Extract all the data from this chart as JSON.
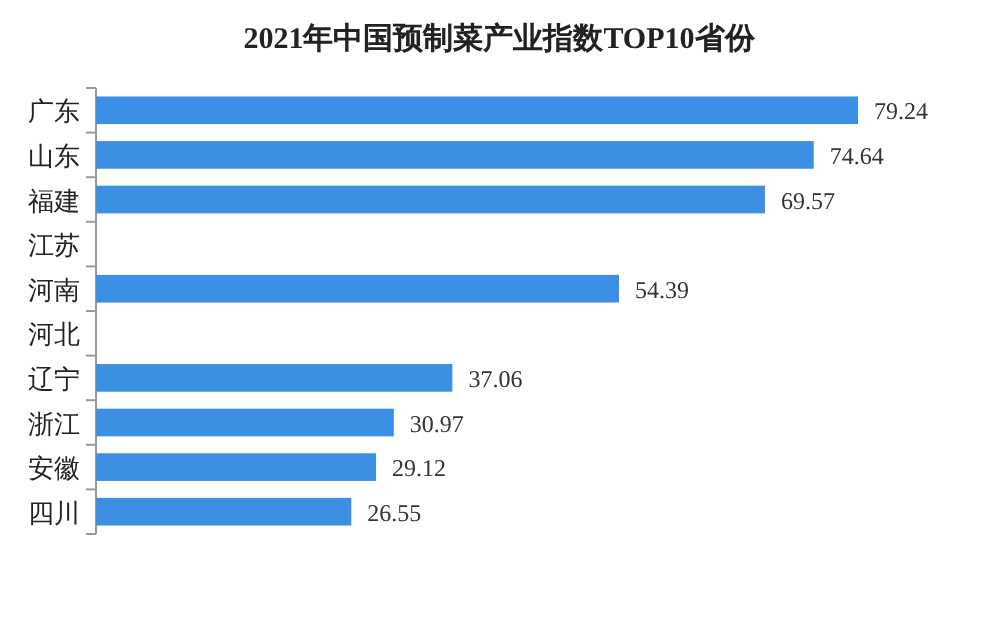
{
  "chart_data": {
    "type": "bar",
    "orientation": "horizontal",
    "title": "2021年中国预制菜产业指数TOP10省份",
    "categories": [
      "广东",
      "山东",
      "福建",
      "江苏",
      "河南",
      "河北",
      "辽宁",
      "浙江",
      "安徽",
      "四川"
    ],
    "values": [
      79.24,
      74.64,
      69.57,
      null,
      54.39,
      null,
      37.06,
      30.97,
      29.12,
      26.55
    ],
    "color": "#3d8fe3",
    "data_labels": true
  }
}
